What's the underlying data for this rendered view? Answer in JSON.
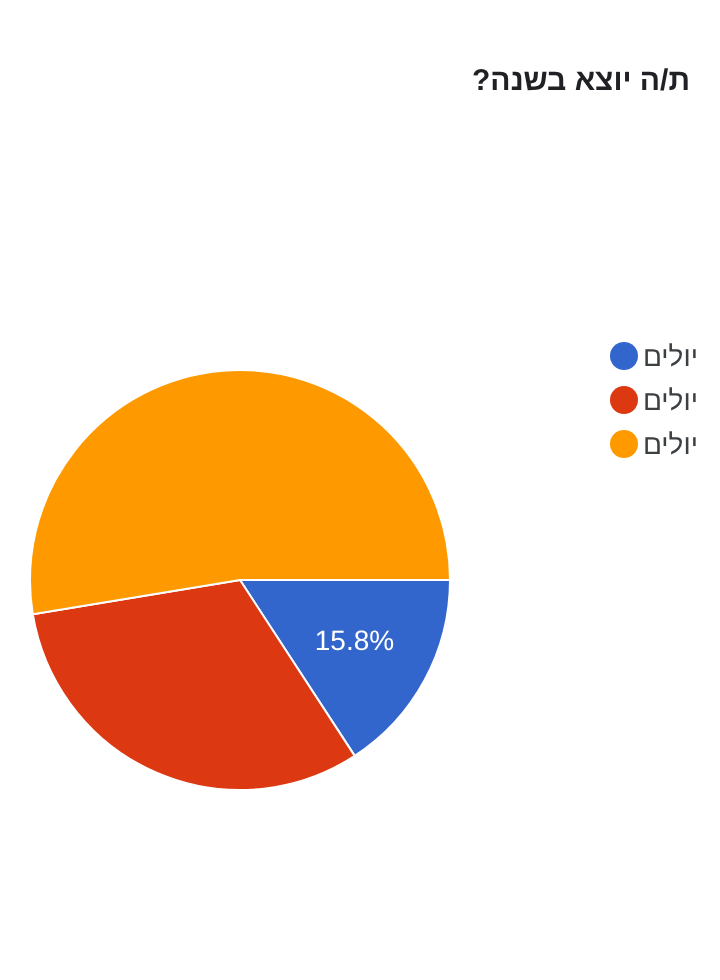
{
  "chart_data": {
    "type": "pie",
    "title": "ת/ה יוצא בשנה?",
    "categories": [
      "יולים",
      "יולים",
      "יולים"
    ],
    "values": [
      15.8,
      31.6,
      52.6
    ],
    "colors": [
      "#3366cc",
      "#dc3912",
      "#ff9900"
    ],
    "value_labels": [
      "15.8%",
      null,
      null
    ],
    "legend": "right"
  }
}
